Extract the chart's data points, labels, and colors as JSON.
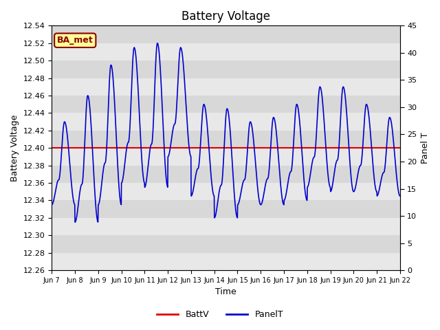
{
  "title": "Battery Voltage",
  "ylabel_left": "Battery Voltage",
  "ylabel_right": "Panel T",
  "xlabel": "Time",
  "ylim_left": [
    12.26,
    12.54
  ],
  "ylim_right": [
    0,
    45
  ],
  "yticks_left": [
    12.26,
    12.28,
    12.3,
    12.32,
    12.34,
    12.36,
    12.38,
    12.4,
    12.42,
    12.44,
    12.46,
    12.48,
    12.5,
    12.52,
    12.54
  ],
  "yticks_right": [
    0,
    5,
    10,
    15,
    20,
    25,
    30,
    35,
    40,
    45
  ],
  "xtick_labels": [
    "Jun 7",
    "Jun 8",
    "Jun 9",
    "Jun 10",
    "Jun 11",
    "Jun 12",
    "Jun 13",
    "Jun 14",
    "Jun 15",
    "Jun 16",
    "Jun 17",
    "Jun 18",
    "Jun 19",
    "Jun 20",
    "Jun 21",
    "Jun 22"
  ],
  "battv_value": 12.4,
  "battv_color": "#dd0000",
  "panelt_color": "#0000cc",
  "bg_color": "#d8d8d8",
  "stripe_color": "#e8e8e8",
  "annotation_text": "BA_met",
  "annotation_bg": "#ffff99",
  "annotation_border": "#8b0000",
  "legend_labels": [
    "BattV",
    "PanelT"
  ],
  "title_fontsize": 12,
  "axis_fontsize": 9,
  "tick_fontsize": 8,
  "n_days": 15,
  "peaks_left": [
    12.43,
    12.46,
    12.495,
    12.515,
    12.52,
    12.515,
    12.45,
    12.445,
    12.43,
    12.435,
    12.45,
    12.47,
    12.47,
    12.45,
    12.435
  ],
  "troughs_left": [
    12.335,
    12.315,
    12.335,
    12.36,
    12.355,
    12.39,
    12.345,
    12.32,
    12.335,
    12.335,
    12.34,
    12.355,
    12.35,
    12.35,
    12.345
  ]
}
